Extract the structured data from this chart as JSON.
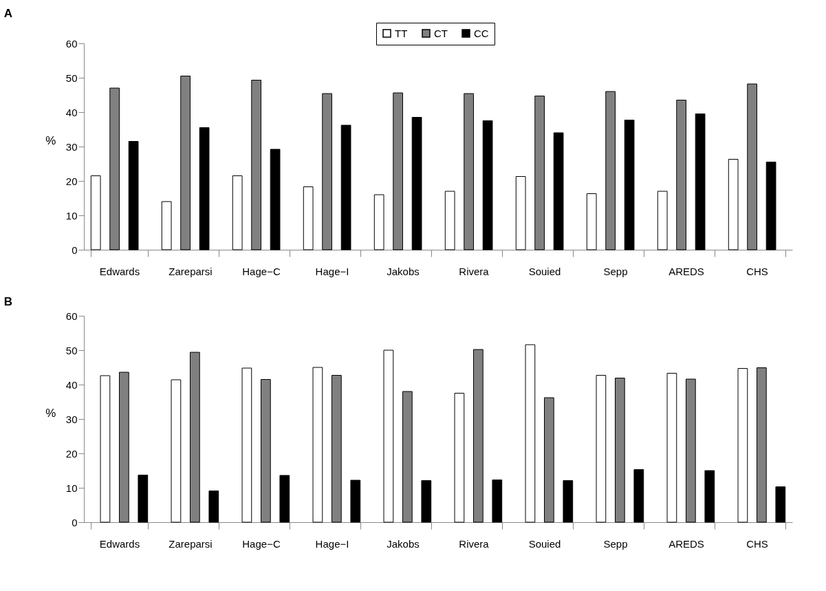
{
  "chart_data": [
    {
      "type": "bar",
      "title": "A",
      "ylabel": "%",
      "categories": [
        "Edwards",
        "Zareparsi",
        "Hage−C",
        "Hage−I",
        "Jakobs",
        "Rivera",
        "Souied",
        "Sepp",
        "AREDS",
        "CHS"
      ],
      "ylim": [
        0,
        60
      ],
      "yticks": [
        0,
        10,
        20,
        30,
        40,
        50,
        60
      ],
      "grid": false,
      "legend": "top",
      "series": [
        {
          "name": "TT",
          "color": "#ffffff",
          "values": [
            21.5,
            14,
            21.5,
            18.3,
            16,
            17,
            21.3,
            16.3,
            17,
            26.3
          ]
        },
        {
          "name": "CT",
          "color": "#808080",
          "values": [
            47,
            50.5,
            49.3,
            45.4,
            45.6,
            45.4,
            44.7,
            46,
            43.5,
            48.2
          ]
        },
        {
          "name": "CC",
          "color": "#000000",
          "values": [
            31.5,
            35.5,
            29.2,
            36.2,
            38.5,
            37.5,
            34,
            37.7,
            39.5,
            25.5
          ]
        }
      ]
    },
    {
      "type": "bar",
      "title": "B",
      "ylabel": "%",
      "categories": [
        "Edwards",
        "Zareparsi",
        "Hage−C",
        "Hage−I",
        "Jakobs",
        "Rivera",
        "Souied",
        "Sepp",
        "AREDS",
        "CHS"
      ],
      "ylim": [
        0,
        60
      ],
      "yticks": [
        0,
        10,
        20,
        30,
        40,
        50,
        60
      ],
      "grid": false,
      "series": [
        {
          "color": "#ffffff",
          "values": [
            42.6,
            41.4,
            44.8,
            45,
            50,
            37.5,
            51.6,
            42.7,
            43.3,
            44.7
          ]
        },
        {
          "color": "#808080",
          "values": [
            43.6,
            49.4,
            41.5,
            42.7,
            38,
            50.2,
            36.2,
            41.9,
            41.6,
            44.9
          ]
        },
        {
          "color": "#000000",
          "values": [
            13.7,
            9.1,
            13.6,
            12.2,
            12.1,
            12.3,
            12.1,
            15.3,
            15,
            10.3
          ]
        }
      ]
    }
  ]
}
